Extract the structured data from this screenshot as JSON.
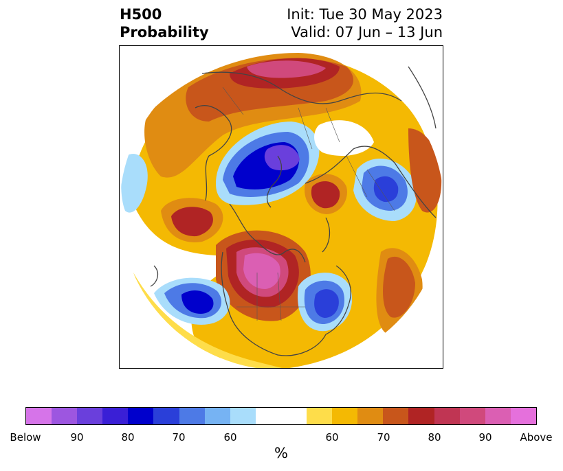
{
  "title": {
    "left_line1": "H500",
    "left_line2": "Probability",
    "right_line1": "Init: Tue 30 May 2023",
    "right_line2": "Valid: 07 Jun – 13 Jun"
  },
  "colorbar": {
    "colors": [
      "#d674e9",
      "#9d56e0",
      "#6a3fdc",
      "#3a1fd6",
      "#0000cc",
      "#2a3fd9",
      "#4d7ae6",
      "#76b3f3",
      "#a9ddfb",
      "#ffffff",
      "#ffffff",
      "#fedd4a",
      "#f4b903",
      "#e08c12",
      "#c8561b",
      "#b02424",
      "#c03553",
      "#d0497c",
      "#db5fb3",
      "#e570dc"
    ],
    "labels": [
      "Below",
      "90",
      "80",
      "70",
      "60",
      "60",
      "70",
      "80",
      "90",
      "Above"
    ],
    "unit": "%"
  },
  "palette": {
    "below_light": "#a9ddfb",
    "below_mid": "#4d7ae6",
    "below_strong": "#0000cc",
    "below_extreme": "#6a3fdc",
    "above_light": "#fedd4a",
    "above_mid": "#f4b903",
    "above_orange": "#e08c12",
    "above_rust": "#c8561b",
    "above_red": "#b02424",
    "above_pink": "#d0497c",
    "above_extreme": "#db5fb3"
  }
}
